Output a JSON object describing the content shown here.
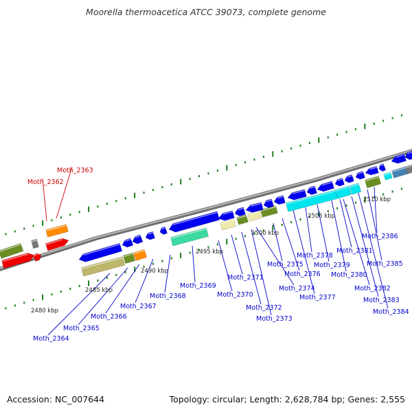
{
  "header": {
    "title": "Moorella thermoacetica ATCC 39073, complete genome"
  },
  "footer": {
    "accession": "Accession: NC_007644",
    "topology": "Topology: circular; Length: 2,628,784 bp; Genes: 2,555"
  },
  "colors": {
    "axis": "#8c8c8c",
    "tick": "#1a7a1a",
    "label_red": "#cc0000",
    "label_blue": "#0000cc",
    "gene_blue": "#0000ee",
    "gene_red": "#ee0000",
    "gene_cyan": "#00e5ee",
    "gene_olive": "#6b8e23",
    "gene_khaki": "#bdb76b",
    "gene_orange": "#ff8c00",
    "gene_aquamarine": "#3cd9a0",
    "gene_lightkhaki": "#eee8aa",
    "gene_steel": "#4682b4",
    "gene_grey": "#777777"
  },
  "scale_labels": [
    {
      "text": "2480 kbp",
      "pos": 2480
    },
    {
      "text": "2485 kbp",
      "pos": 2485
    },
    {
      "text": "2490 kbp",
      "pos": 2490
    },
    {
      "text": "2495 kbp",
      "pos": 2495
    },
    {
      "text": "2500 kbp",
      "pos": 2500
    },
    {
      "text": "2505 kbp",
      "pos": 2505
    },
    {
      "text": "2510 kbp",
      "pos": 2510
    }
  ],
  "gene_labels": [
    {
      "text": "Moth_2362",
      "color": "red"
    },
    {
      "text": "Moth_2363",
      "color": "red"
    },
    {
      "text": "Moth_2364",
      "color": "blue"
    },
    {
      "text": "Moth_2365",
      "color": "blue"
    },
    {
      "text": "Moth_2366",
      "color": "blue"
    },
    {
      "text": "Moth_2367",
      "color": "blue"
    },
    {
      "text": "Moth_2368",
      "color": "blue"
    },
    {
      "text": "Moth_2369",
      "color": "blue"
    },
    {
      "text": "Moth_2370",
      "color": "blue"
    },
    {
      "text": "Moth_2371",
      "color": "blue"
    },
    {
      "text": "Moth_2372",
      "color": "blue"
    },
    {
      "text": "Moth_2373",
      "color": "blue"
    },
    {
      "text": "Moth_2374",
      "color": "blue"
    },
    {
      "text": "Moth_2375",
      "color": "blue"
    },
    {
      "text": "Moth_2376",
      "color": "blue"
    },
    {
      "text": "Moth_2377",
      "color": "blue"
    },
    {
      "text": "Moth_2378",
      "color": "blue"
    },
    {
      "text": "Moth_2379",
      "color": "blue"
    },
    {
      "text": "Moth_2380",
      "color": "blue"
    },
    {
      "text": "Moth_2381",
      "color": "blue"
    },
    {
      "text": "Moth_2382",
      "color": "blue"
    },
    {
      "text": "Moth_2383",
      "color": "blue"
    },
    {
      "text": "Moth_2384",
      "color": "blue"
    },
    {
      "text": "Moth_2385",
      "color": "blue"
    },
    {
      "text": "Moth_2386",
      "color": "blue"
    }
  ]
}
